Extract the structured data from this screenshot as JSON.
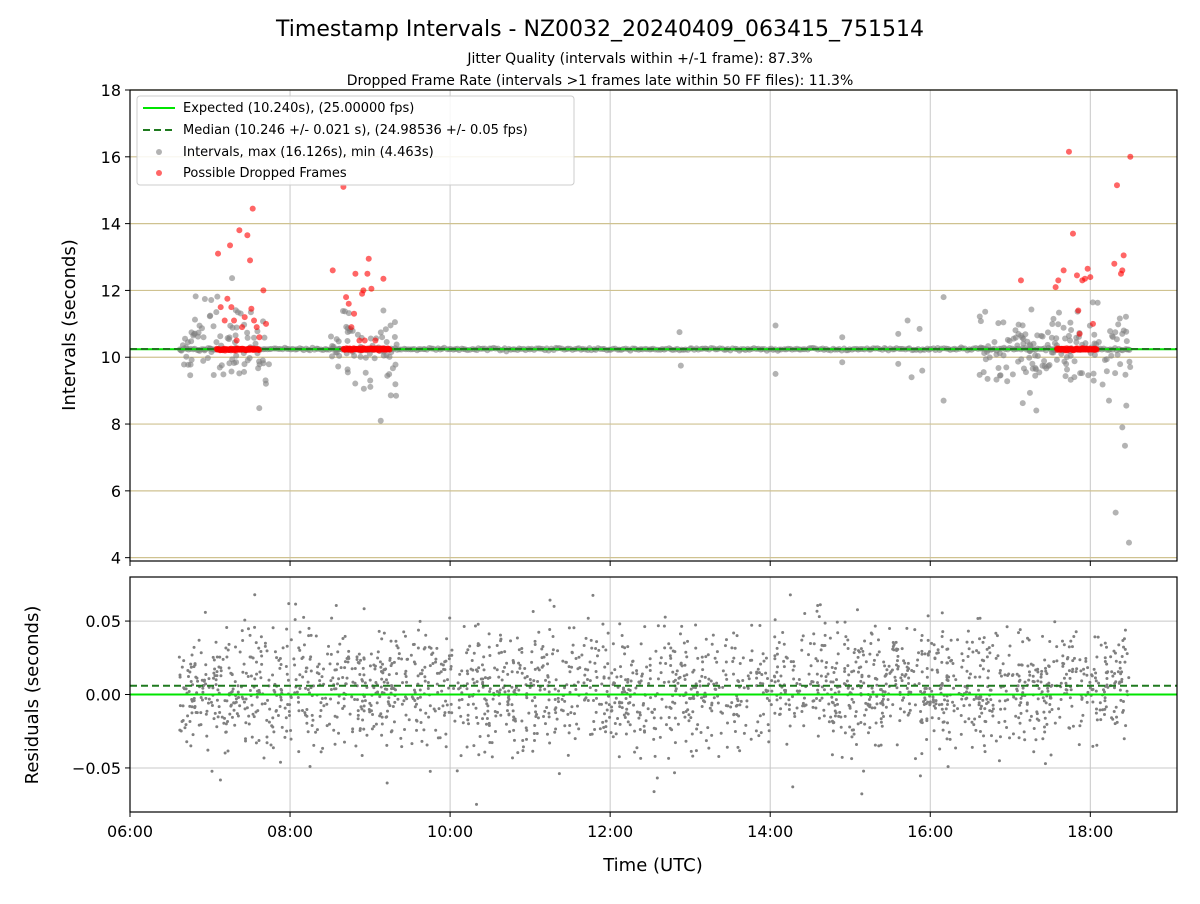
{
  "title": "Timestamp Intervals - NZ0032_20240409_063415_751514",
  "subtitle_lines": [
    "Jitter Quality (intervals within +/-1 frame): 87.3%",
    "Dropped Frame Rate (intervals >1 frames late within 50 FF files): 11.3%"
  ],
  "colors": {
    "expected": "#00e400",
    "median": "#1f7a1f",
    "intervals": "#808080",
    "dropped": "#ff0000",
    "grid_major": "#c8c8c8",
    "grid_interval": "#cfc290"
  },
  "chart_data": [
    {
      "name": "intervals-panel",
      "type": "scatter",
      "xlabel": "",
      "ylabel": "Intervals (seconds)",
      "xlim": [
        "06:00",
        "19:05"
      ],
      "ylim": [
        3.9,
        18
      ],
      "yticks": [
        "4",
        "6",
        "8",
        "10",
        "12",
        "14",
        "16",
        "18"
      ],
      "ytick_values": [
        4,
        6,
        8,
        10,
        12,
        14,
        16,
        18
      ],
      "grid": true,
      "legend_position": "upper-left",
      "legend": [
        "Expected (10.240s), (25.00000 fps)",
        "Median (10.246 +/- 0.021 s), (24.98536 +/- 0.05 fps)",
        "Intervals, max (16.126s), min (4.463s)",
        "Possible Dropped Frames"
      ],
      "expected_interval": 10.24,
      "median_interval": 10.246,
      "max_interval": 16.126,
      "min_interval": 4.463,
      "clusters": [
        {
          "start": "06:38",
          "end": "07:45",
          "spread": 1.1
        },
        {
          "start": "08:30",
          "end": "09:20",
          "spread": 1.0
        },
        {
          "start": "16:35",
          "end": "18:30",
          "spread": 1.1
        }
      ],
      "sparse_outliers": [
        {
          "x": "09:10",
          "y": 11.4
        },
        {
          "x": "09:08",
          "y": 8.1
        },
        {
          "x": "12:52",
          "y": 10.75
        },
        {
          "x": "12:53",
          "y": 9.75
        },
        {
          "x": "14:04",
          "y": 10.95
        },
        {
          "x": "14:04",
          "y": 9.5
        },
        {
          "x": "14:54",
          "y": 10.6
        },
        {
          "x": "14:54",
          "y": 9.85
        },
        {
          "x": "15:36",
          "y": 10.7
        },
        {
          "x": "15:36",
          "y": 9.8
        },
        {
          "x": "15:43",
          "y": 11.1
        },
        {
          "x": "15:46",
          "y": 9.4
        },
        {
          "x": "15:52",
          "y": 10.85
        },
        {
          "x": "15:54",
          "y": 9.6
        },
        {
          "x": "16:10",
          "y": 11.8
        },
        {
          "x": "16:10",
          "y": 8.7
        }
      ],
      "dropped_frames": [
        {
          "x": "07:06",
          "y": 13.1
        },
        {
          "x": "07:08",
          "y": 11.5
        },
        {
          "x": "07:11",
          "y": 11.1
        },
        {
          "x": "07:13",
          "y": 11.75
        },
        {
          "x": "07:15",
          "y": 13.35
        },
        {
          "x": "07:16",
          "y": 11.5
        },
        {
          "x": "07:18",
          "y": 11.1
        },
        {
          "x": "07:20",
          "y": 10.5
        },
        {
          "x": "07:22",
          "y": 13.8
        },
        {
          "x": "07:24",
          "y": 10.9
        },
        {
          "x": "07:26",
          "y": 11.2
        },
        {
          "x": "07:28",
          "y": 13.65
        },
        {
          "x": "07:30",
          "y": 12.9
        },
        {
          "x": "07:31",
          "y": 11.45
        },
        {
          "x": "07:32",
          "y": 14.45
        },
        {
          "x": "07:33",
          "y": 11.1
        },
        {
          "x": "07:35",
          "y": 10.9
        },
        {
          "x": "07:37",
          "y": 10.6
        },
        {
          "x": "07:40",
          "y": 12.0
        },
        {
          "x": "07:42",
          "y": 11.0
        },
        {
          "x": "08:32",
          "y": 12.6
        },
        {
          "x": "08:40",
          "y": 15.1
        },
        {
          "x": "08:42",
          "y": 11.8
        },
        {
          "x": "08:44",
          "y": 11.6
        },
        {
          "x": "08:46",
          "y": 10.9
        },
        {
          "x": "08:48",
          "y": 11.3
        },
        {
          "x": "08:49",
          "y": 12.5
        },
        {
          "x": "08:52",
          "y": 10.5
        },
        {
          "x": "08:54",
          "y": 11.9
        },
        {
          "x": "08:55",
          "y": 12.0
        },
        {
          "x": "08:56",
          "y": 10.5
        },
        {
          "x": "08:58",
          "y": 12.5
        },
        {
          "x": "08:59",
          "y": 12.95
        },
        {
          "x": "09:01",
          "y": 12.05
        },
        {
          "x": "09:04",
          "y": 10.5
        },
        {
          "x": "09:10",
          "y": 12.35
        },
        {
          "x": "17:08",
          "y": 12.3
        },
        {
          "x": "17:34",
          "y": 12.1
        },
        {
          "x": "17:36",
          "y": 12.3
        },
        {
          "x": "17:40",
          "y": 12.6
        },
        {
          "x": "17:44",
          "y": 16.15
        },
        {
          "x": "17:47",
          "y": 13.7
        },
        {
          "x": "17:50",
          "y": 12.45
        },
        {
          "x": "17:51",
          "y": 11.4
        },
        {
          "x": "17:52",
          "y": 10.7
        },
        {
          "x": "17:54",
          "y": 12.3
        },
        {
          "x": "17:56",
          "y": 12.35
        },
        {
          "x": "17:58",
          "y": 12.65
        },
        {
          "x": "18:00",
          "y": 12.4
        },
        {
          "x": "18:02",
          "y": 11.0
        },
        {
          "x": "18:18",
          "y": 12.8
        },
        {
          "x": "18:20",
          "y": 15.15
        },
        {
          "x": "18:23",
          "y": 12.5
        },
        {
          "x": "18:24",
          "y": 12.6
        },
        {
          "x": "18:25",
          "y": 13.05
        },
        {
          "x": "18:30",
          "y": 16.0
        }
      ],
      "dropped_baseline_bands": [
        {
          "start": "07:05",
          "end": "07:37"
        },
        {
          "start": "08:40",
          "end": "09:15"
        },
        {
          "start": "17:35",
          "end": "18:05"
        }
      ],
      "tail_low_points": [
        {
          "x": "18:19",
          "y": 5.35
        },
        {
          "x": "18:29",
          "y": 4.45
        },
        {
          "x": "18:26",
          "y": 7.35
        },
        {
          "x": "18:24",
          "y": 7.9
        },
        {
          "x": "18:27",
          "y": 8.55
        },
        {
          "x": "18:14",
          "y": 8.7
        }
      ]
    },
    {
      "name": "residuals-panel",
      "type": "scatter",
      "xlabel": "Time (UTC)",
      "ylabel": "Residuals (seconds)",
      "xlim": [
        "06:00",
        "19:05"
      ],
      "ylim": [
        -0.08,
        0.08
      ],
      "yticks": [
        "−0.05",
        "0.00",
        "0.05"
      ],
      "ytick_values": [
        -0.05,
        0.0,
        0.05
      ],
      "xticks": [
        "06:00",
        "08:00",
        "10:00",
        "12:00",
        "14:00",
        "16:00",
        "18:00"
      ],
      "grid": true,
      "expected_residual": 0.0,
      "median_residual": 0.006,
      "data_range": [
        "06:37",
        "18:30"
      ],
      "residual_sigma": 0.021,
      "point_count": 2200
    }
  ]
}
